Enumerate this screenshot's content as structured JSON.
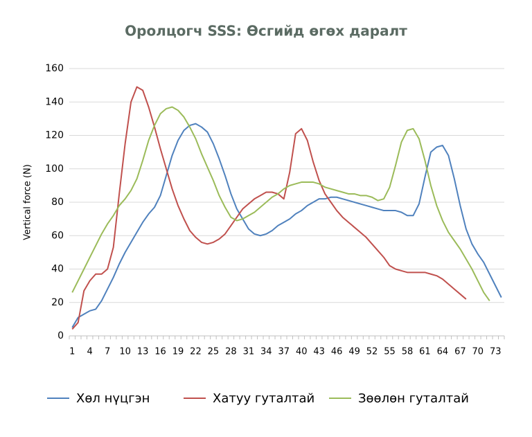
{
  "chart_data": {
    "type": "line",
    "title": "Оролцогч SSS: Өсгийд өгөх даралт",
    "y_label": "Vertical force (N)",
    "categories": [
      1,
      null,
      null,
      4,
      null,
      null,
      7,
      null,
      null,
      10,
      null,
      null,
      13,
      null,
      null,
      16,
      null,
      null,
      19,
      null,
      null,
      22,
      null,
      null,
      25,
      null,
      null,
      28,
      null,
      null,
      31,
      null,
      null,
      34,
      null,
      null,
      37,
      null,
      null,
      40,
      null,
      null,
      43,
      null,
      null,
      46,
      null,
      null,
      49,
      null,
      null,
      52,
      null,
      null,
      55,
      null,
      null,
      58,
      null,
      null,
      61,
      null,
      null,
      64,
      null,
      null,
      67,
      null,
      null,
      70,
      null,
      null,
      73,
      null
    ],
    "series": [
      {
        "name": "Хөл нүцгэн",
        "color": "#4f81bd",
        "values": [
          5,
          11,
          13,
          15,
          16,
          21,
          28,
          35,
          43,
          50,
          56,
          62,
          68,
          73,
          77,
          84,
          96,
          108,
          117,
          123,
          126,
          127,
          125,
          122,
          115,
          106,
          96,
          85,
          76,
          70,
          64,
          61,
          60,
          61,
          63,
          66,
          68,
          70,
          73,
          75,
          78,
          80,
          82,
          82,
          83,
          83,
          82,
          81,
          80,
          79,
          78,
          77,
          76,
          75,
          75,
          75,
          74,
          72,
          72,
          79,
          95,
          110,
          113,
          114,
          108,
          94,
          78,
          64,
          55,
          49,
          44,
          37,
          30,
          23
        ]
      },
      {
        "name": "Хатуу гуталтай",
        "color": "#c0504d",
        "values": [
          4,
          8,
          27,
          33,
          37,
          37,
          40,
          53,
          85,
          115,
          140,
          149,
          147,
          137,
          125,
          112,
          100,
          88,
          78,
          70,
          63,
          59,
          56,
          55,
          56,
          58,
          61,
          66,
          71,
          76,
          79,
          82,
          84,
          86,
          86,
          85,
          82,
          98,
          121,
          124,
          117,
          104,
          93,
          85,
          80,
          75,
          71,
          68,
          65,
          62,
          59,
          55,
          51,
          47,
          42,
          40,
          39,
          38,
          38,
          38,
          38,
          37,
          36,
          34,
          31,
          28,
          25,
          22,
          null,
          null,
          null,
          null,
          null,
          null
        ]
      },
      {
        "name": "Зөөлөн гуталтай",
        "color": "#9bbb59",
        "values": [
          26,
          33,
          40,
          47,
          54,
          61,
          67,
          72,
          78,
          82,
          87,
          94,
          105,
          117,
          126,
          133,
          136,
          137,
          135,
          131,
          125,
          118,
          109,
          101,
          93,
          84,
          77,
          71,
          69,
          70,
          72,
          74,
          77,
          80,
          83,
          85,
          88,
          90,
          91,
          92,
          92,
          92,
          91,
          89,
          88,
          87,
          86,
          85,
          85,
          84,
          84,
          83,
          81,
          82,
          89,
          102,
          116,
          123,
          124,
          118,
          105,
          90,
          78,
          69,
          62,
          57,
          52,
          46,
          40,
          33,
          26,
          21,
          null,
          null
        ]
      }
    ],
    "ylim": [
      0,
      160
    ],
    "yticks": [
      0,
      20,
      40,
      60,
      80,
      100,
      120,
      140,
      160
    ],
    "grid": true,
    "legend": "bottom"
  }
}
